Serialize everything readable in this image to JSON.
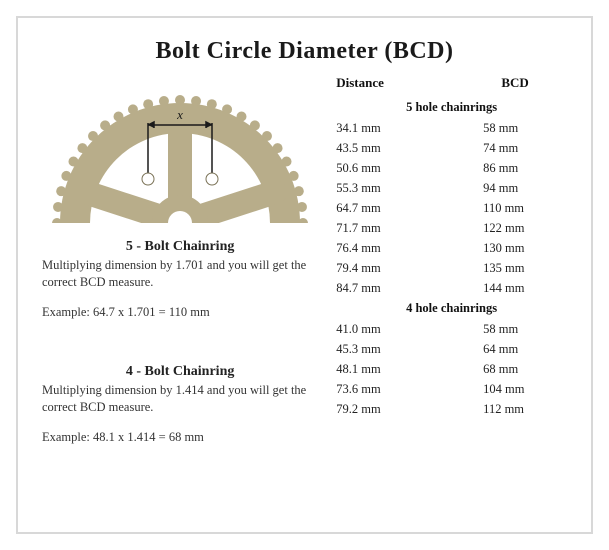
{
  "title": "Bolt Circle Diameter (BCD)",
  "left": {
    "dimension_label": "x",
    "five_bolt": {
      "heading": "5 - Bolt Chainring",
      "body": "Multiplying dimension by 1.701 and you will get the correct BCD measure.",
      "example": "Example: 64.7 x 1.701 = 110 mm"
    },
    "four_bolt": {
      "heading": "4 - Bolt Chainring",
      "body": "Multiplying dimension by 1.414 and you will get the correct BCD measure.",
      "example": "Example: 48.1 x 1.414 = 68 mm"
    },
    "chainring_style": {
      "fill": "#b8ad8a",
      "stroke": "#7a7256",
      "hole_fill": "#ffffff",
      "arrow_color": "#1a1a1a",
      "label_color": "#1a1a1a"
    }
  },
  "table": {
    "header_distance": "Distance",
    "header_bcd": "BCD",
    "group5_title": "5 hole chainrings",
    "group5_rows": [
      {
        "distance": "34.1 mm",
        "bcd": "58 mm"
      },
      {
        "distance": "43.5 mm",
        "bcd": "74 mm"
      },
      {
        "distance": "50.6 mm",
        "bcd": "86 mm"
      },
      {
        "distance": "55.3 mm",
        "bcd": "94 mm"
      },
      {
        "distance": "64.7 mm",
        "bcd": "110 mm"
      },
      {
        "distance": "71.7 mm",
        "bcd": "122 mm"
      },
      {
        "distance": "76.4 mm",
        "bcd": "130 mm"
      },
      {
        "distance": "79.4 mm",
        "bcd": "135 mm"
      },
      {
        "distance": "84.7 mm",
        "bcd": "144 mm"
      }
    ],
    "group4_title": "4 hole chainrings",
    "group4_rows": [
      {
        "distance": "41.0 mm",
        "bcd": "58 mm"
      },
      {
        "distance": "45.3 mm",
        "bcd": "64 mm"
      },
      {
        "distance": "48.1 mm",
        "bcd": "68 mm"
      },
      {
        "distance": "73.6 mm",
        "bcd": "104 mm"
      },
      {
        "distance": "79.2 mm",
        "bcd": "112 mm"
      }
    ]
  }
}
